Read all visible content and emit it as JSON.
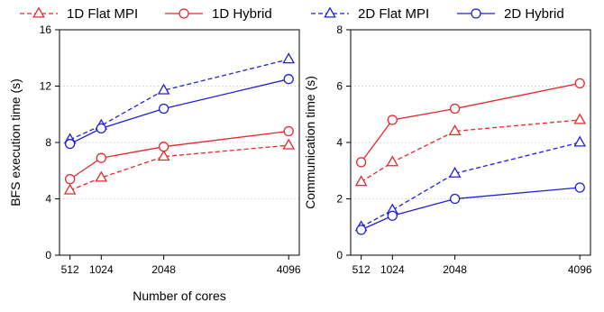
{
  "legend": {
    "placement": "top",
    "items": [
      {
        "label": "1D Flat MPI",
        "color": "#e8262d",
        "dashed": true,
        "marker": "triangle"
      },
      {
        "label": "1D Hybrid",
        "color": "#e8262d",
        "dashed": false,
        "marker": "circle"
      },
      {
        "label": "2D Flat MPI",
        "color": "#1f1fd6",
        "dashed": true,
        "marker": "triangle"
      },
      {
        "label": "2D Hybrid",
        "color": "#1f1fd6",
        "dashed": false,
        "marker": "circle"
      }
    ]
  },
  "chart_data": [
    {
      "type": "line",
      "title": "",
      "xlabel": "Number of cores",
      "ylabel": "BFS execution time (s)",
      "x": [
        512,
        1024,
        2048,
        4096
      ],
      "xticks": [
        "512",
        "1024",
        "2048",
        "4096"
      ],
      "ylim": [
        0,
        16
      ],
      "yticks": [
        "0",
        "4",
        "8",
        "12",
        "16"
      ],
      "grid": "horizontal dotted",
      "series": [
        {
          "name": "1D Flat MPI",
          "values": [
            4.6,
            5.5,
            7.0,
            7.8
          ]
        },
        {
          "name": "1D Hybrid",
          "values": [
            5.4,
            6.9,
            7.7,
            8.8
          ]
        },
        {
          "name": "2D Flat MPI",
          "values": [
            8.2,
            9.2,
            11.7,
            13.9
          ]
        },
        {
          "name": "2D Hybrid",
          "values": [
            7.9,
            9.0,
            10.4,
            12.5
          ]
        }
      ]
    },
    {
      "type": "line",
      "title": "",
      "xlabel": "",
      "ylabel": "Communication time (s)",
      "x": [
        512,
        1024,
        2048,
        4096
      ],
      "xticks": [
        "512",
        "1024",
        "2048",
        "4096"
      ],
      "ylim": [
        0,
        8
      ],
      "yticks": [
        "0",
        "2",
        "4",
        "6",
        "8"
      ],
      "grid": "horizontal dotted",
      "series": [
        {
          "name": "1D Flat MPI",
          "values": [
            2.6,
            3.3,
            4.4,
            4.8
          ]
        },
        {
          "name": "1D Hybrid",
          "values": [
            3.3,
            4.8,
            5.2,
            6.1
          ]
        },
        {
          "name": "2D Flat MPI",
          "values": [
            1.0,
            1.6,
            2.9,
            4.0
          ]
        },
        {
          "name": "2D Hybrid",
          "values": [
            0.9,
            1.4,
            2.0,
            2.4
          ]
        }
      ]
    }
  ]
}
